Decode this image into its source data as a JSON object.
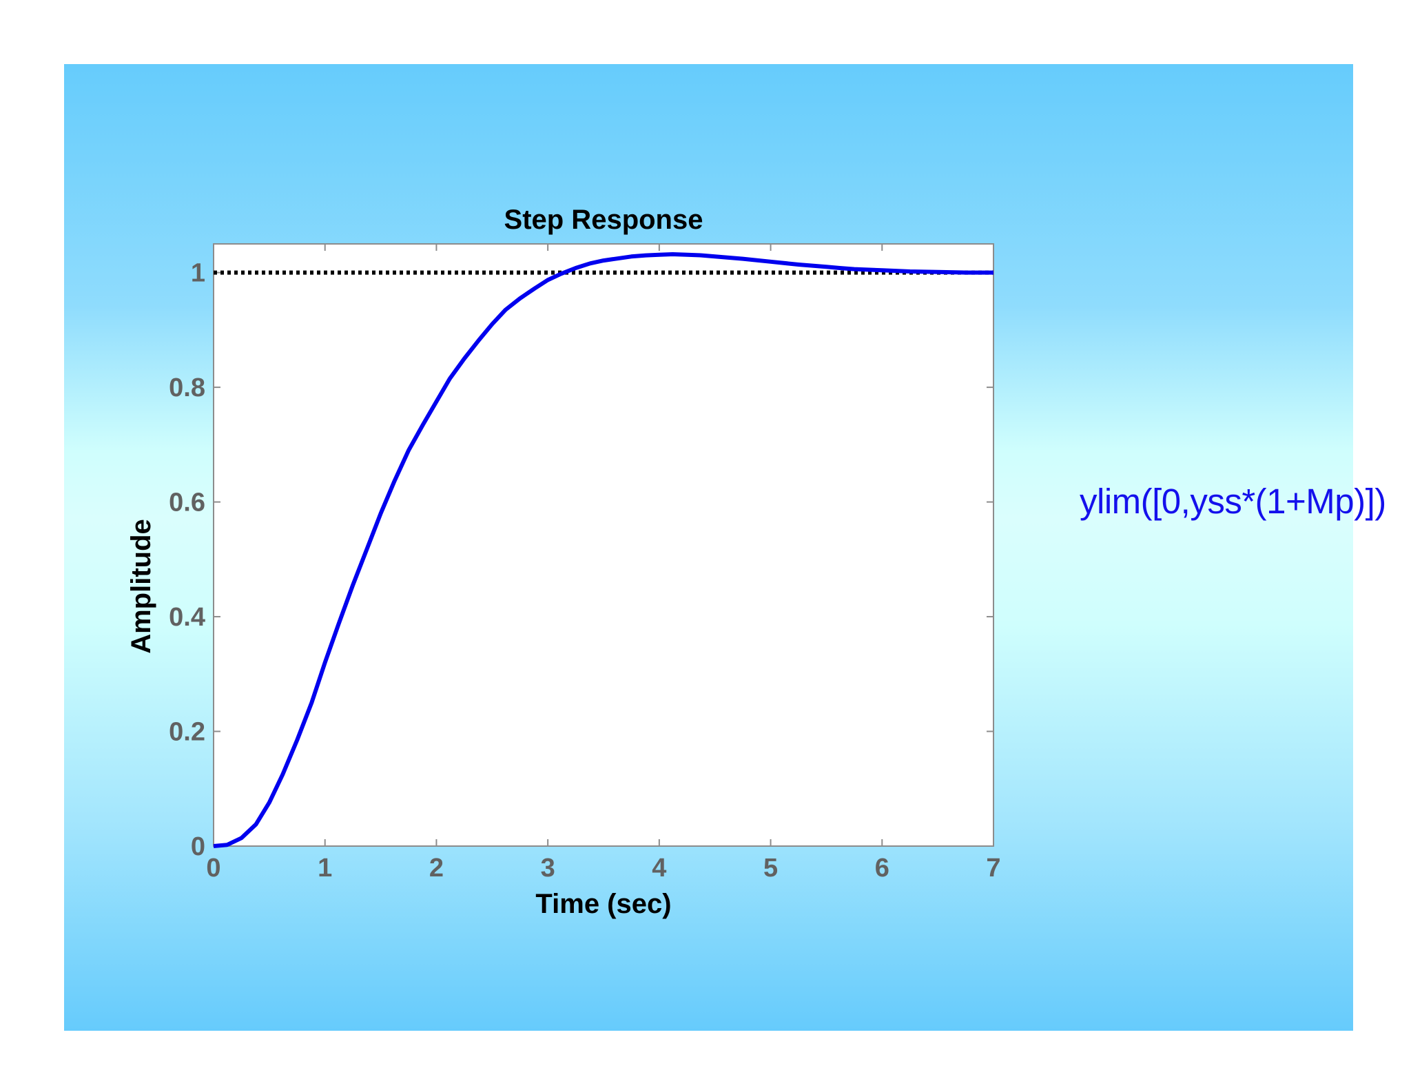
{
  "colors": {
    "slide_gradient_edge": "#66ccfc",
    "slide_gradient_center": "#dafefd",
    "plot_background": "#ffffff",
    "response_line": "#0000ee",
    "reference_line": "#000000",
    "annotation_text": "#1410ec",
    "tick_label": "#616161"
  },
  "annotation": {
    "text": "ylim([0,yss*(1+Mp)])"
  },
  "chart_data": {
    "type": "line",
    "title": "Step Response",
    "xlabel": "Time (sec)",
    "ylabel": "Amplitude",
    "xlim": [
      0,
      7
    ],
    "ylim": [
      0,
      1.05
    ],
    "grid": false,
    "xticks": [
      0,
      1,
      2,
      3,
      4,
      5,
      6,
      7
    ],
    "xtick_labels": [
      "0",
      "1",
      "2",
      "3",
      "4",
      "5",
      "6",
      "7"
    ],
    "yticks": [
      0,
      0.2,
      0.4,
      0.6,
      0.8,
      1
    ],
    "ytick_labels": [
      "0",
      "0.2",
      "0.4",
      "0.6",
      "0.8",
      "1"
    ],
    "series": [
      {
        "style": "solid",
        "color": "#0000ee",
        "x": [
          0,
          0.12,
          0.25,
          0.38,
          0.5,
          0.62,
          0.75,
          0.88,
          1.0,
          1.12,
          1.25,
          1.38,
          1.5,
          1.62,
          1.75,
          1.88,
          2.0,
          2.12,
          2.25,
          2.38,
          2.5,
          2.62,
          2.75,
          2.88,
          3.0,
          3.12,
          3.25,
          3.38,
          3.5,
          3.75,
          3.88,
          4.0,
          4.12,
          4.25,
          4.38,
          4.5,
          4.75,
          5.0,
          5.25,
          5.5,
          5.62,
          5.75,
          6.0,
          6.25,
          6.5,
          6.75,
          7.0
        ],
        "y": [
          0,
          0.002,
          0.014,
          0.038,
          0.076,
          0.125,
          0.185,
          0.25,
          0.32,
          0.386,
          0.455,
          0.52,
          0.58,
          0.635,
          0.69,
          0.735,
          0.775,
          0.815,
          0.85,
          0.882,
          0.91,
          0.935,
          0.955,
          0.972,
          0.987,
          0.998,
          1.008,
          1.016,
          1.021,
          1.028,
          1.03,
          1.031,
          1.032,
          1.031,
          1.03,
          1.028,
          1.024,
          1.019,
          1.014,
          1.01,
          1.008,
          1.006,
          1.004,
          1.002,
          1.001,
          1.0,
          1.0
        ]
      },
      {
        "style": "dotted",
        "color": "#000000",
        "x": [
          0,
          7
        ],
        "y": [
          1,
          1
        ]
      }
    ]
  }
}
